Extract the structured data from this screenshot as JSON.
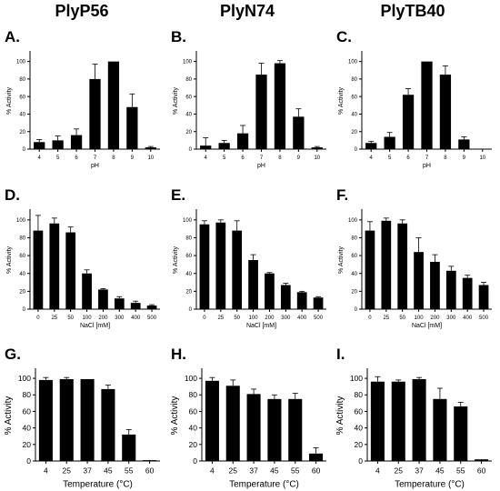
{
  "column_titles": [
    "PlyP56",
    "PlyN74",
    "PlyTB40"
  ],
  "chart_data": [
    {
      "panel": "A.",
      "type": "bar",
      "title": "PlyP56",
      "xlabel": "pH",
      "ylabel": "% Activity",
      "categories": [
        "4",
        "5",
        "6",
        "7",
        "8",
        "9",
        "10"
      ],
      "values": [
        8,
        10,
        16,
        80,
        100,
        48,
        2
      ],
      "errors": [
        3,
        5,
        7,
        17,
        0,
        15,
        1
      ],
      "ylim": [
        0,
        110
      ],
      "yticks": [
        0,
        20,
        40,
        60,
        80,
        100
      ]
    },
    {
      "panel": "B.",
      "type": "bar",
      "title": "PlyN74",
      "xlabel": "pH",
      "ylabel": "% Activity",
      "categories": [
        "4",
        "5",
        "6",
        "7",
        "8",
        "9",
        "10"
      ],
      "values": [
        4,
        7,
        18,
        85,
        98,
        37,
        2
      ],
      "errors": [
        9,
        3,
        9,
        13,
        3,
        9,
        1
      ],
      "ylim": [
        0,
        110
      ],
      "yticks": [
        0,
        20,
        40,
        60,
        80,
        100
      ]
    },
    {
      "panel": "C.",
      "type": "bar",
      "title": "PlyTB40",
      "xlabel": "pH",
      "ylabel": "% Activity",
      "categories": [
        "4",
        "5",
        "6",
        "7",
        "8",
        "9",
        "10"
      ],
      "values": [
        7,
        14,
        62,
        100,
        85,
        11,
        0
      ],
      "errors": [
        2,
        5,
        7,
        0,
        10,
        3,
        0
      ],
      "ylim": [
        0,
        110
      ],
      "yticks": [
        0,
        20,
        40,
        60,
        80,
        100
      ]
    },
    {
      "panel": "D.",
      "type": "bar",
      "xlabel": "NaCl [mM]",
      "ylabel": "% Activity",
      "categories": [
        "0",
        "25",
        "50",
        "100",
        "200",
        "300",
        "400",
        "500"
      ],
      "values": [
        88,
        96,
        86,
        40,
        22,
        12,
        7,
        4
      ],
      "errors": [
        17,
        6,
        6,
        4,
        1,
        2,
        2,
        1
      ],
      "ylim": [
        0,
        110
      ],
      "yticks": [
        0,
        20,
        40,
        60,
        80,
        100
      ]
    },
    {
      "panel": "E.",
      "type": "bar",
      "xlabel": "NaCl [mM]",
      "ylabel": "% Activity",
      "categories": [
        "0",
        "25",
        "50",
        "100",
        "200",
        "300",
        "400",
        "500"
      ],
      "values": [
        95,
        97,
        88,
        55,
        40,
        27,
        19,
        13
      ],
      "errors": [
        4,
        3,
        11,
        6,
        1,
        2,
        1,
        1
      ],
      "ylim": [
        0,
        110
      ],
      "yticks": [
        0,
        20,
        40,
        60,
        80,
        100
      ]
    },
    {
      "panel": "F.",
      "type": "bar",
      "xlabel": "NaCl [mM]",
      "ylabel": "% Activity",
      "categories": [
        "0",
        "25",
        "50",
        "100",
        "200",
        "300",
        "400",
        "500"
      ],
      "values": [
        88,
        99,
        96,
        64,
        53,
        43,
        35,
        27
      ],
      "errors": [
        10,
        3,
        4,
        16,
        8,
        5,
        3,
        3
      ],
      "ylim": [
        0,
        110
      ],
      "yticks": [
        0,
        20,
        40,
        60,
        80,
        100
      ]
    },
    {
      "panel": "G.",
      "type": "bar",
      "xlabel": "Temperature (°C)",
      "ylabel": "% Activity",
      "categories": [
        "4",
        "25",
        "37",
        "45",
        "55",
        "60"
      ],
      "values": [
        98,
        99,
        99,
        87,
        32,
        1
      ],
      "errors": [
        3,
        2,
        0,
        5,
        6,
        0
      ],
      "ylim": [
        0,
        110
      ],
      "yticks": [
        0,
        20,
        40,
        60,
        80,
        100
      ]
    },
    {
      "panel": "H.",
      "type": "bar",
      "xlabel": "Temperature (°C)",
      "ylabel": "% Activity",
      "categories": [
        "4",
        "25",
        "37",
        "45",
        "55",
        "60"
      ],
      "values": [
        97,
        91,
        81,
        75,
        75,
        9
      ],
      "errors": [
        4,
        7,
        6,
        5,
        7,
        7
      ],
      "ylim": [
        0,
        110
      ],
      "yticks": [
        0,
        20,
        40,
        60,
        80,
        100
      ]
    },
    {
      "panel": "I.",
      "type": "bar",
      "xlabel": "Temperature (°C)",
      "ylabel": "% Activity",
      "categories": [
        "4",
        "25",
        "37",
        "45",
        "55",
        "60"
      ],
      "values": [
        96,
        96,
        99,
        75,
        66,
        2
      ],
      "errors": [
        6,
        2,
        2,
        13,
        5,
        0
      ],
      "ylim": [
        0,
        110
      ],
      "yticks": [
        0,
        20,
        40,
        60,
        80,
        100
      ]
    }
  ]
}
